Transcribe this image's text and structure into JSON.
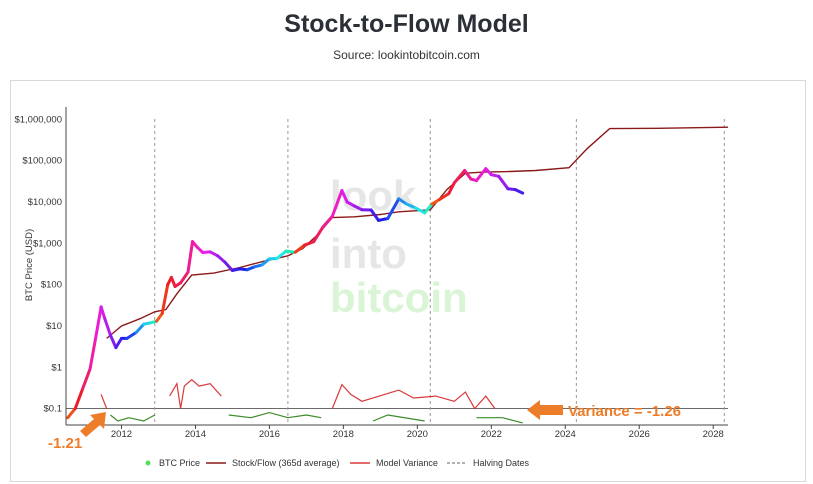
{
  "page": {
    "title": "Stock-to-Flow Model",
    "subtitle": "Source: lookintobitcoin.com"
  },
  "watermark": [
    "look",
    "into",
    "bitcoin"
  ],
  "annotations": {
    "variance_label": "Variance = -1.26",
    "start_label": "-1.21"
  },
  "colors": {
    "sf_line": "#8b1a1a",
    "variance_line": "#d93a3a",
    "variance_green": "#3d8a2a",
    "halving": "#999999",
    "callout": "#ee7d2a",
    "watermark_gray": "#e6e6e6",
    "watermark_green": "#d9f5d6"
  },
  "chart_data": {
    "type": "line",
    "title": "Stock-to-Flow Model",
    "ylabel": "BTC Price (USD)",
    "xlabel": "",
    "y_scale": "log",
    "ylim": [
      0.04,
      2000000
    ],
    "xlim": [
      2010.5,
      2028.4
    ],
    "y_ticks": [
      {
        "value": 0.1,
        "label": "$0.1"
      },
      {
        "value": 1,
        "label": "$1"
      },
      {
        "value": 10,
        "label": "$10"
      },
      {
        "value": 100,
        "label": "$100"
      },
      {
        "value": 1000,
        "label": "$1,000"
      },
      {
        "value": 10000,
        "label": "$10,000"
      },
      {
        "value": 100000,
        "label": "$100,000"
      },
      {
        "value": 1000000,
        "label": "$1,000,000"
      }
    ],
    "x_ticks": [
      "2012",
      "2014",
      "2016",
      "2018",
      "2020",
      "2022",
      "2024",
      "2026",
      "2028"
    ],
    "halving_dates": [
      2012.9,
      2016.5,
      2020.35,
      2024.3,
      2028.3
    ],
    "legend": [
      "BTC Price",
      "Stock/Flow (365d average)",
      "Model Variance",
      "Halving Dates"
    ],
    "legend_position": "bottom",
    "grid": false,
    "series": [
      {
        "name": "BTC Price",
        "points": [
          [
            2010.55,
            0.06
          ],
          [
            2010.75,
            0.1
          ],
          [
            2010.95,
            0.3
          ],
          [
            2011.15,
            0.9
          ],
          [
            2011.3,
            5
          ],
          [
            2011.45,
            29
          ],
          [
            2011.55,
            15
          ],
          [
            2011.7,
            6
          ],
          [
            2011.85,
            3
          ],
          [
            2012.0,
            5
          ],
          [
            2012.15,
            5
          ],
          [
            2012.4,
            7
          ],
          [
            2012.6,
            11
          ],
          [
            2012.8,
            12
          ],
          [
            2012.95,
            13
          ],
          [
            2013.1,
            20
          ],
          [
            2013.25,
            100
          ],
          [
            2013.35,
            150
          ],
          [
            2013.45,
            90
          ],
          [
            2013.6,
            110
          ],
          [
            2013.8,
            200
          ],
          [
            2013.92,
            1100
          ],
          [
            2014.05,
            800
          ],
          [
            2014.2,
            600
          ],
          [
            2014.4,
            620
          ],
          [
            2014.6,
            500
          ],
          [
            2014.8,
            350
          ],
          [
            2015.0,
            220
          ],
          [
            2015.2,
            240
          ],
          [
            2015.4,
            230
          ],
          [
            2015.6,
            270
          ],
          [
            2015.8,
            300
          ],
          [
            2016.0,
            420
          ],
          [
            2016.2,
            430
          ],
          [
            2016.45,
            650
          ],
          [
            2016.7,
            610
          ],
          [
            2016.95,
            900
          ],
          [
            2017.2,
            1100
          ],
          [
            2017.45,
            2500
          ],
          [
            2017.7,
            4500
          ],
          [
            2017.96,
            19000
          ],
          [
            2018.1,
            10000
          ],
          [
            2018.3,
            8000
          ],
          [
            2018.5,
            6500
          ],
          [
            2018.75,
            6400
          ],
          [
            2018.95,
            3600
          ],
          [
            2019.2,
            4000
          ],
          [
            2019.5,
            12000
          ],
          [
            2019.7,
            9000
          ],
          [
            2019.95,
            7200
          ],
          [
            2020.2,
            5500
          ],
          [
            2020.4,
            9000
          ],
          [
            2020.6,
            11500
          ],
          [
            2020.85,
            16000
          ],
          [
            2021.0,
            29000
          ],
          [
            2021.28,
            58000
          ],
          [
            2021.45,
            36000
          ],
          [
            2021.6,
            33000
          ],
          [
            2021.85,
            64000
          ],
          [
            2022.0,
            46000
          ],
          [
            2022.2,
            42000
          ],
          [
            2022.45,
            21000
          ],
          [
            2022.65,
            20000
          ],
          [
            2022.85,
            16500
          ]
        ]
      },
      {
        "name": "Stock/Flow (365d average)",
        "points": [
          [
            2011.6,
            5
          ],
          [
            2012.0,
            10
          ],
          [
            2012.5,
            15
          ],
          [
            2012.9,
            22
          ],
          [
            2013.2,
            25
          ],
          [
            2013.5,
            60
          ],
          [
            2013.9,
            170
          ],
          [
            2014.5,
            190
          ],
          [
            2015.2,
            260
          ],
          [
            2015.8,
            360
          ],
          [
            2016.5,
            500
          ],
          [
            2016.9,
            750
          ],
          [
            2017.3,
            1600
          ],
          [
            2017.7,
            4200
          ],
          [
            2018.3,
            4400
          ],
          [
            2019.0,
            5000
          ],
          [
            2019.5,
            5800
          ],
          [
            2020.35,
            6500
          ],
          [
            2020.8,
            20000
          ],
          [
            2021.3,
            50000
          ],
          [
            2021.8,
            53000
          ],
          [
            2022.5,
            55000
          ],
          [
            2023.2,
            58000
          ],
          [
            2024.1,
            68000
          ],
          [
            2024.6,
            200000
          ],
          [
            2025.2,
            600000
          ],
          [
            2026.5,
            610000
          ],
          [
            2028.4,
            650000
          ]
        ]
      },
      {
        "name": "Model Variance",
        "points_red": [
          [
            2011.45,
            0.22
          ],
          [
            2011.6,
            0.1
          ],
          [
            2013.3,
            0.2
          ],
          [
            2013.5,
            0.4
          ],
          [
            2013.6,
            0.1
          ],
          [
            2013.7,
            0.35
          ],
          [
            2013.9,
            0.5
          ],
          [
            2014.1,
            0.35
          ],
          [
            2014.4,
            0.4
          ],
          [
            2014.7,
            0.2
          ],
          [
            2017.7,
            0.1
          ],
          [
            2017.96,
            0.38
          ],
          [
            2018.2,
            0.22
          ],
          [
            2018.5,
            0.15
          ],
          [
            2019.5,
            0.28
          ],
          [
            2019.9,
            0.18
          ],
          [
            2020.5,
            0.2
          ],
          [
            2021.0,
            0.15
          ],
          [
            2021.3,
            0.25
          ],
          [
            2021.55,
            0.1
          ],
          [
            2021.85,
            0.2
          ],
          [
            2022.1,
            0.1
          ]
        ],
        "points_green": [
          [
            2011.7,
            0.07
          ],
          [
            2011.9,
            0.05
          ],
          [
            2012.2,
            0.06
          ],
          [
            2012.6,
            0.05
          ],
          [
            2012.9,
            0.07
          ],
          [
            2014.9,
            0.07
          ],
          [
            2015.5,
            0.06
          ],
          [
            2016.0,
            0.08
          ],
          [
            2016.5,
            0.06
          ],
          [
            2017.0,
            0.07
          ],
          [
            2017.4,
            0.06
          ],
          [
            2018.8,
            0.05
          ],
          [
            2019.2,
            0.07
          ],
          [
            2020.2,
            0.05
          ],
          [
            2021.6,
            0.06
          ],
          [
            2022.3,
            0.06
          ],
          [
            2022.85,
            0.045
          ]
        ]
      }
    ]
  }
}
